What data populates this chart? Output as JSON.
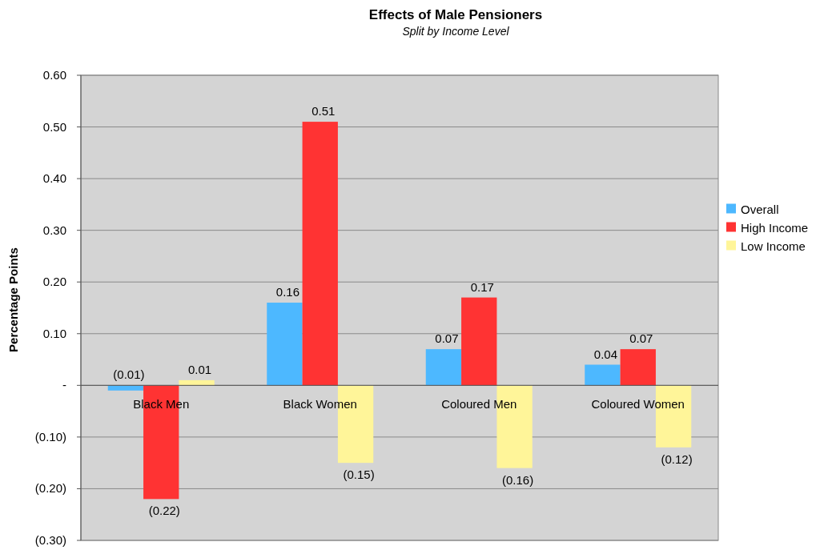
{
  "chart_data": {
    "type": "bar",
    "title": "Effects of Male Pensioners",
    "subtitle": "Split by Income Level",
    "ylabel": "Percentage Points",
    "categories": [
      "Black Men",
      "Black Women",
      "Coloured Men",
      "Coloured Women"
    ],
    "series": [
      {
        "name": "Overall",
        "color": "#4db8ff",
        "values": [
          -0.01,
          0.16,
          0.07,
          0.04
        ],
        "value_labels": [
          "(0.01)",
          "0.16",
          "0.07",
          "0.04"
        ]
      },
      {
        "name": "High Income",
        "color": "#ff3333",
        "values": [
          -0.22,
          0.51,
          0.17,
          0.07
        ],
        "value_labels": [
          "(0.22)",
          "0.51",
          "0.17",
          "0.07"
        ]
      },
      {
        "name": "Low Income",
        "color": "#fff599",
        "values": [
          0.01,
          -0.15,
          -0.16,
          -0.12
        ],
        "value_labels": [
          "0.01",
          "(0.15)",
          "(0.16)",
          "(0.12)"
        ]
      }
    ],
    "ylim": [
      -0.3,
      0.6
    ],
    "yticks": [
      {
        "value": 0.6,
        "label": "0.60"
      },
      {
        "value": 0.5,
        "label": "0.50"
      },
      {
        "value": 0.4,
        "label": "0.40"
      },
      {
        "value": 0.3,
        "label": "0.30"
      },
      {
        "value": 0.2,
        "label": "0.20"
      },
      {
        "value": 0.1,
        "label": "0.10"
      },
      {
        "value": 0,
        "label": "-"
      },
      {
        "value": -0.1,
        "label": "(0.10)"
      },
      {
        "value": -0.2,
        "label": "(0.20)"
      },
      {
        "value": -0.3,
        "label": "(0.30)"
      }
    ],
    "grid": "y",
    "legend": "right"
  }
}
